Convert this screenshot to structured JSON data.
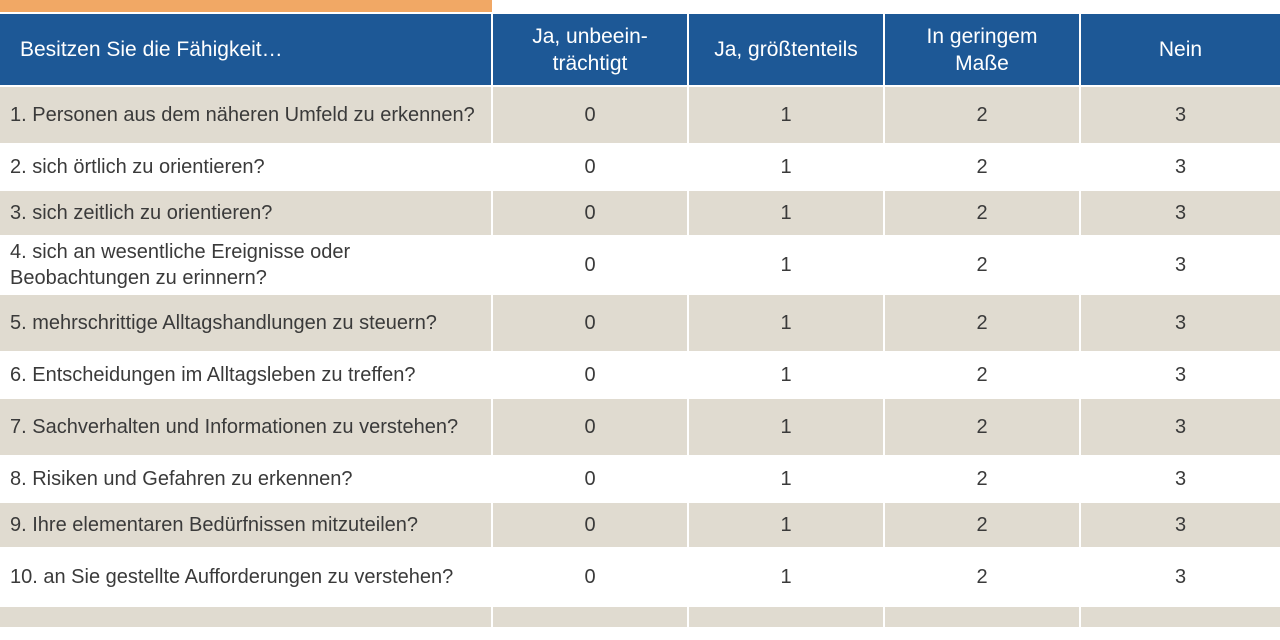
{
  "header": {
    "question": "Besitzen Sie die Fähigkeit…",
    "opt0": "Ja, unbeein-\nträchtigt",
    "opt1": "Ja, größtenteils",
    "opt2": "In geringem\nMaße",
    "opt3": "Nein"
  },
  "rows": [
    {
      "q": "1. Personen aus dem näheren Umfeld zu erkennen?",
      "v": [
        "0",
        "1",
        "2",
        "3"
      ]
    },
    {
      "q": "2. sich örtlich zu orientieren?",
      "v": [
        "0",
        "1",
        "2",
        "3"
      ]
    },
    {
      "q": "3. sich zeitlich zu orientieren?",
      "v": [
        "0",
        "1",
        "2",
        "3"
      ]
    },
    {
      "q": "4. sich an wesentliche Ereignisse oder Beobachtungen zu erinnern?",
      "v": [
        "0",
        "1",
        "2",
        "3"
      ]
    },
    {
      "q": "5. mehrschrittige Alltagshandlungen zu steuern?",
      "v": [
        "0",
        "1",
        "2",
        "3"
      ]
    },
    {
      "q": "6. Entscheidungen im Alltagsleben zu treffen?",
      "v": [
        "0",
        "1",
        "2",
        "3"
      ]
    },
    {
      "q": "7. Sachverhalten und Informationen zu verstehen?",
      "v": [
        "0",
        "1",
        "2",
        "3"
      ]
    },
    {
      "q": "8. Risiken und Gefahren zu erkennen?",
      "v": [
        "0",
        "1",
        "2",
        "3"
      ]
    },
    {
      "q": "9. Ihre elementaren Bedürfnissen mitzuteilen?",
      "v": [
        "0",
        "1",
        "2",
        "3"
      ]
    },
    {
      "q": "10. an Sie gestellte Aufforderungen zu verstehen?",
      "v": [
        "0",
        "1",
        "2",
        "3"
      ]
    }
  ],
  "colors": {
    "header_bg": "#1d5896",
    "shade_row": "#e0dbd0",
    "accent_orange": "#f1a865"
  }
}
